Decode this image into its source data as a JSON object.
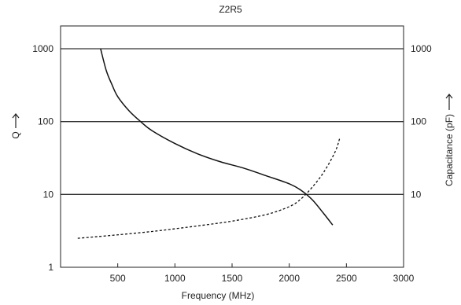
{
  "chart_data": {
    "type": "line",
    "title": "Z2R5",
    "xlabel": "Frequency (MHz)",
    "ylabel_left": "Q",
    "ylabel_right": "Capacitance (pF)",
    "xlim": [
      0,
      3000
    ],
    "ylim": [
      1,
      1000
    ],
    "y_scale": "log",
    "grid": "horizontal",
    "x_ticks": [
      500,
      1000,
      1500,
      2000,
      2500,
      3000
    ],
    "y_ticks_left": [
      "1",
      "10",
      "100",
      "1000"
    ],
    "y_ticks_right": [
      "10",
      "100",
      "1000"
    ],
    "series": [
      {
        "style": "solid",
        "color": "#111111",
        "x": [
          350,
          400,
          450,
          500,
          600,
          700,
          800,
          1000,
          1200,
          1400,
          1600,
          1800,
          2000,
          2100,
          2200,
          2300,
          2380
        ],
        "y": [
          1000,
          500,
          320,
          220,
          140,
          100,
          75,
          50,
          36,
          28,
          23,
          18,
          14,
          11.5,
          8.5,
          5.5,
          3.8
        ]
      },
      {
        "style": "dashed",
        "color": "#111111",
        "x": [
          150,
          400,
          800,
          1200,
          1500,
          1800,
          2000,
          2100,
          2200,
          2300,
          2400,
          2440
        ],
        "y": [
          2.5,
          2.7,
          3.1,
          3.7,
          4.3,
          5.3,
          6.8,
          8.6,
          12.5,
          20,
          38,
          58
        ]
      }
    ]
  }
}
